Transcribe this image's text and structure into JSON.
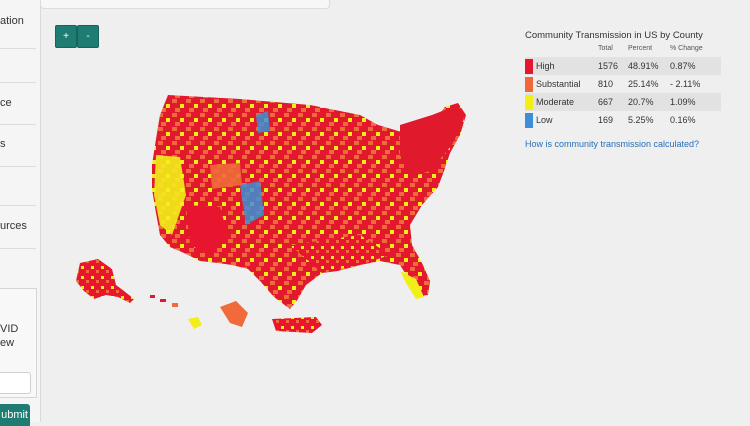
{
  "sidebar": {
    "items": [
      {
        "label": "ation"
      },
      {
        "label": "ce"
      },
      {
        "label": "s"
      },
      {
        "label": "urces"
      }
    ],
    "form": {
      "line1": "VID",
      "line2": "ew",
      "submit_label": "ubmit"
    }
  },
  "zoom": {
    "in_label": "+",
    "out_label": "-"
  },
  "legend": {
    "title": "Community Transmission in US by County",
    "headers": {
      "total": "Total",
      "percent": "Percent",
      "change": "% Change"
    },
    "rows": [
      {
        "label": "High",
        "total": "1576",
        "percent": "48.91%",
        "change": "0.87%",
        "color": "#e8152e"
      },
      {
        "label": "Substantial",
        "total": "810",
        "percent": "25.14%",
        "change": "- 2.11%",
        "color": "#f0673a"
      },
      {
        "label": "Moderate",
        "total": "667",
        "percent": "20.7%",
        "change": "1.09%",
        "color": "#f2ef18"
      },
      {
        "label": "Low",
        "total": "169",
        "percent": "5.25%",
        "change": "0.16%",
        "color": "#3c8fd6"
      }
    ],
    "link": "How is community transmission calculated?"
  },
  "colors": {
    "button_teal": "#1f7c72",
    "link_blue": "#2a6fb6"
  }
}
